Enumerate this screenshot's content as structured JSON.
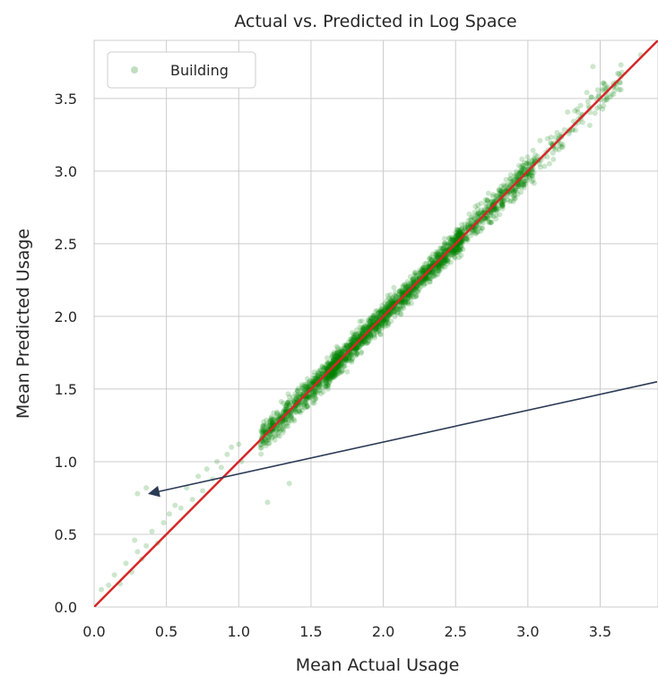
{
  "chart_data": {
    "type": "scatter",
    "title": "Actual vs. Predicted in Log Space",
    "xlabel": "Mean Actual Usage",
    "ylabel": "Mean Predicted Usage",
    "xlim": [
      0.0,
      3.9
    ],
    "ylim": [
      0.0,
      3.9
    ],
    "x_ticks": [
      "0.0",
      "0.5",
      "1.0",
      "1.5",
      "2.0",
      "2.5",
      "3.0",
      "3.5"
    ],
    "y_ticks": [
      "0.0",
      "0.5",
      "1.0",
      "1.5",
      "2.0",
      "2.5",
      "3.0",
      "3.5"
    ],
    "grid": true,
    "legend": {
      "position": "top-left",
      "entries": [
        "Building"
      ]
    },
    "series": [
      {
        "name": "Building",
        "color": "#008000",
        "opacity": 0.2,
        "distribution": "dense cluster along y = x, approx. 1.1–3.8, densest near 2.0",
        "values": [
          [
            0.05,
            0.12
          ],
          [
            0.1,
            0.15
          ],
          [
            0.14,
            0.22
          ],
          [
            0.18,
            0.16
          ],
          [
            0.22,
            0.3
          ],
          [
            0.26,
            0.24
          ],
          [
            0.3,
            0.38
          ],
          [
            0.28,
            0.46
          ],
          [
            0.33,
            0.33
          ],
          [
            0.36,
            0.42
          ],
          [
            0.4,
            0.52
          ],
          [
            0.44,
            0.44
          ],
          [
            0.48,
            0.58
          ],
          [
            0.3,
            0.78
          ],
          [
            0.36,
            0.82
          ],
          [
            0.52,
            0.64
          ],
          [
            0.56,
            0.7
          ],
          [
            0.6,
            0.68
          ],
          [
            0.64,
            0.82
          ],
          [
            0.68,
            0.74
          ],
          [
            0.72,
            0.9
          ],
          [
            0.75,
            0.8
          ],
          [
            0.78,
            0.95
          ],
          [
            0.82,
            0.88
          ],
          [
            0.85,
            1.0
          ],
          [
            0.88,
            0.96
          ],
          [
            0.92,
            1.05
          ],
          [
            0.95,
            1.1
          ],
          [
            1.0,
            1.12
          ],
          [
            1.02,
            1.0
          ],
          [
            1.2,
            0.72
          ],
          [
            1.35,
            0.85
          ],
          [
            3.45,
            3.72
          ],
          [
            3.65,
            3.68
          ],
          [
            3.78,
            3.8
          ]
        ]
      }
    ],
    "reference_line": {
      "from": [
        0.0,
        0.0
      ],
      "to": [
        3.9,
        3.9
      ],
      "color": "#d62728"
    },
    "annotation_arrow": {
      "from": [
        3.95,
        1.55
      ],
      "to": [
        0.38,
        0.78
      ],
      "color": "#2b3a55"
    }
  }
}
